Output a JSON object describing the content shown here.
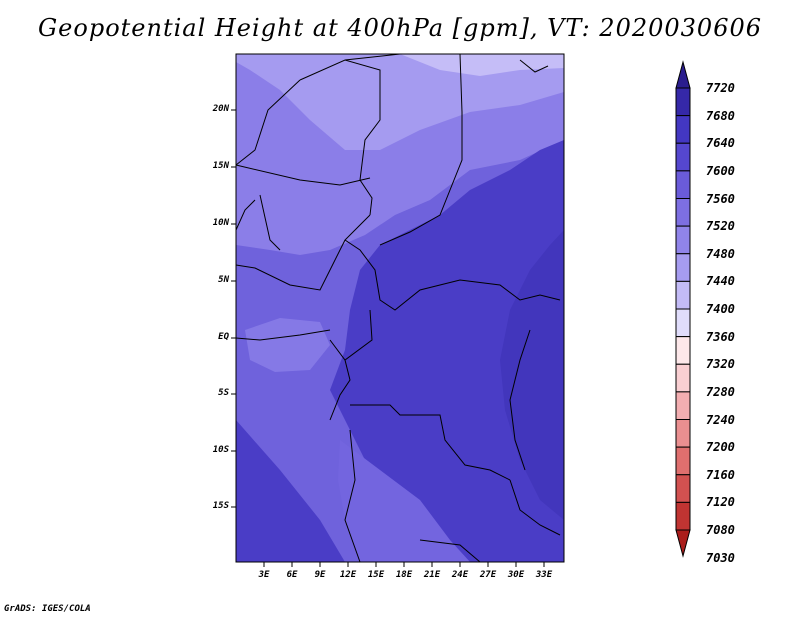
{
  "title": "Geopotential Height at 400hPa [gpm], VT: 2020030606",
  "credit": "GrADS: IGES/COLA",
  "lat_ticks": [
    "20N",
    "15N",
    "10N",
    "5N",
    "EQ",
    "5S",
    "10S",
    "15S"
  ],
  "lon_ticks": [
    "3E",
    "6E",
    "9E",
    "12E",
    "15E",
    "18E",
    "21E",
    "24E",
    "27E",
    "30E",
    "33E"
  ],
  "colorbar": {
    "labels": [
      "7720",
      "7680",
      "7640",
      "7600",
      "7560",
      "7520",
      "7480",
      "7440",
      "7400",
      "7360",
      "7320",
      "7280",
      "7240",
      "7200",
      "7160",
      "7120",
      "7080",
      "7030"
    ],
    "colors": [
      "#2a1d8e",
      "#3528a8",
      "#4337c2",
      "#5547cf",
      "#6a5bda",
      "#7d6fe2",
      "#9084ea",
      "#a69cf0",
      "#c3bbf6",
      "#e0ddfb",
      "#fde8ea",
      "#f9cfd2",
      "#f3aeb1",
      "#ea8f90",
      "#df6f6e",
      "#d25150",
      "#c03432",
      "#aa1d1b"
    ]
  }
}
